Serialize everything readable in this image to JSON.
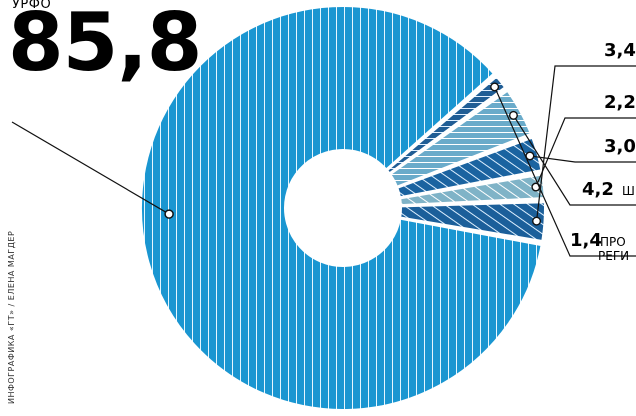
{
  "header": {
    "top_label": "УРФО",
    "big_value": "85,8"
  },
  "credit": "ИНФОГРАФИКА «ГТ» / ЕЛЕНА МАГДЕР",
  "chart_data": {
    "type": "pie",
    "variant": "donut",
    "legend_placement": "callout labels on right",
    "slices": [
      {
        "value": 85.8,
        "label": "85,8",
        "name": "УРФО",
        "color": "#1a96d1",
        "pattern": "vertical-lines"
      },
      {
        "value": 3.4,
        "label": "3,4",
        "name": "",
        "color": "#1b5f9a",
        "pattern": "diagonal-lines"
      },
      {
        "value": 2.2,
        "label": "2,2",
        "name": "",
        "color": "#7fb3c7",
        "pattern": "diagonal-lines"
      },
      {
        "value": 3.0,
        "label": "3,0",
        "name": "",
        "color": "#1a63a0",
        "pattern": "diagonal-lines"
      },
      {
        "value": 4.2,
        "label": "4,2",
        "name": "Ш",
        "color": "#6aabca",
        "pattern": "horizontal-lines"
      },
      {
        "value": 1.4,
        "label": "1,4",
        "name": "ПРО РЕГИ",
        "color": "#1f5d95",
        "pattern": "horizontal-lines"
      }
    ]
  }
}
